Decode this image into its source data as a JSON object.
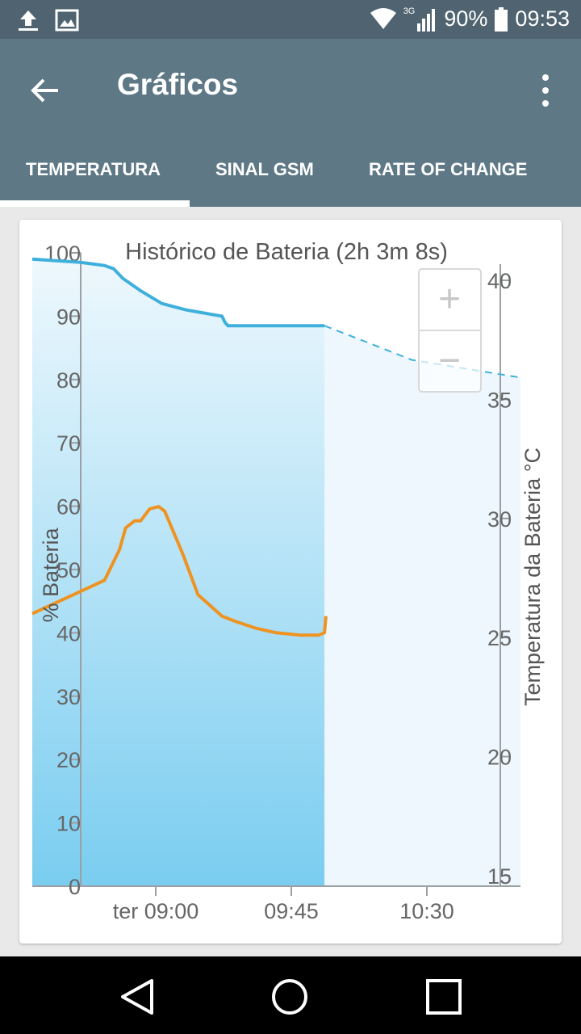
{
  "status_bar": {
    "left_icons": [
      "upload-icon",
      "image-icon"
    ],
    "network": "3G",
    "battery": "90%",
    "time": "09:53"
  },
  "app_bar": {
    "title": "Gráficos",
    "back_icon": "arrow-left-icon",
    "menu_icon": "more-vert-icon"
  },
  "tabs": [
    {
      "label": "TEMPERATURA",
      "selected": true
    },
    {
      "label": "SINAL GSM",
      "selected": false
    },
    {
      "label": "RATE OF CHANGE",
      "selected": false
    }
  ],
  "zoom": {
    "in": "+",
    "out": "−"
  },
  "chart_data": {
    "type": "line",
    "title": "Histórico de Bateria (2h 3m 8s)",
    "ylabel": "% Bateria",
    "y2label": "Temperatura da Bateria °C",
    "ylim": [
      0,
      100
    ],
    "y2lim": [
      15,
      40
    ],
    "y_ticks": [
      "0",
      "10",
      "20",
      "30",
      "40",
      "50",
      "60",
      "70",
      "80",
      "90",
      "100"
    ],
    "y2_ticks": [
      "15",
      "20",
      "25",
      "30",
      "35",
      "40"
    ],
    "x_ticks": [
      "ter 09:00",
      "09:45",
      "10:30"
    ],
    "colors": {
      "battery": "#3fb0dc",
      "temperature": "#ee9322",
      "fill_dark": "#7acdf0",
      "fill_light": "#edf7fd"
    },
    "series": [
      {
        "key": "battery",
        "axis": "left",
        "x": [
          -32,
          -25,
          -17,
          -14,
          -13,
          -12,
          -11,
          -5,
          2,
          10,
          16,
          22,
          23,
          24,
          30,
          40,
          56
        ],
        "values": [
          99,
          98.5,
          98,
          97.5,
          97,
          96.5,
          96,
          94,
          92,
          91,
          90.5,
          90,
          89,
          88.5,
          88.5,
          88.5,
          88.5
        ]
      },
      {
        "key": "battery_projection",
        "axis": "left",
        "dashed": true,
        "x": [
          56,
          70,
          85,
          100
        ],
        "values": [
          88.5,
          85.9,
          83.1,
          80.3
        ]
      },
      {
        "key": "temperature",
        "axis": "right",
        "x": [
          -32,
          -17,
          -12,
          -10,
          -7,
          -5,
          -2,
          1,
          3,
          9,
          14,
          22,
          26,
          33,
          40,
          48,
          54,
          56,
          56.5
        ],
        "values": [
          26.0,
          27.4,
          28.7,
          29.6,
          29.9,
          29.9,
          30.4,
          30.5,
          30.3,
          28.5,
          26.8,
          25.9,
          25.7,
          25.4,
          25.2,
          25.1,
          25.1,
          25.2,
          25.9
        ]
      }
    ]
  },
  "nav_bar": {
    "back": "nav-back-icon",
    "home": "nav-home-icon",
    "recents": "nav-recents-icon"
  }
}
